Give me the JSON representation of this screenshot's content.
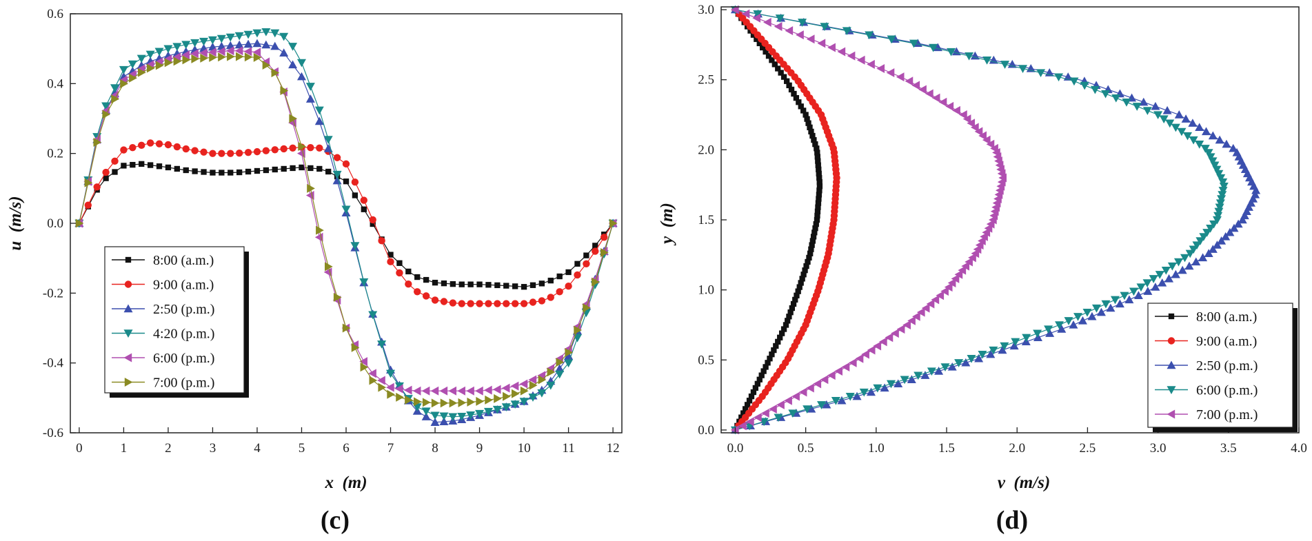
{
  "chart_data": [
    {
      "type": "line",
      "panel_label": "(c)",
      "xlabel": "x  (m)",
      "ylabel": "u  (m/s)",
      "xlim": [
        -0.2,
        12.2
      ],
      "ylim": [
        -0.6,
        0.6
      ],
      "xticks": [
        0,
        1,
        2,
        3,
        4,
        5,
        6,
        7,
        8,
        9,
        10,
        11,
        12
      ],
      "xtick_labels": [
        "0",
        "1",
        "2",
        "3",
        "4",
        "5",
        "6",
        "7",
        "8",
        "9",
        "10",
        "11",
        "12"
      ],
      "yticks": [
        -0.6,
        -0.4,
        -0.2,
        0.0,
        0.2,
        0.4,
        0.6
      ],
      "ytick_labels": [
        "-0.6",
        "-0.4",
        "-0.2",
        "0.0",
        "0.2",
        "0.4",
        "0.6"
      ],
      "legend_position": "lower-left",
      "x_step": 0.2,
      "series": [
        {
          "name": "8:00 (a.m.)",
          "color": "#111111",
          "marker": "square",
          "x": [
            0,
            0.5,
            1,
            1.4,
            2,
            2.5,
            3,
            3.5,
            4,
            4.5,
            5,
            5.5,
            6,
            6.5,
            7,
            7.5,
            8,
            8.5,
            9,
            9.5,
            10,
            10.5,
            11,
            11.5,
            12
          ],
          "y": [
            0,
            0.12,
            0.165,
            0.17,
            0.16,
            0.15,
            0.145,
            0.145,
            0.15,
            0.155,
            0.16,
            0.155,
            0.12,
            0.02,
            -0.09,
            -0.15,
            -0.17,
            -0.175,
            -0.175,
            -0.178,
            -0.182,
            -0.17,
            -0.14,
            -0.08,
            0
          ]
        },
        {
          "name": "9:00 (a.m.)",
          "color": "#e8231f",
          "marker": "circle",
          "x": [
            0,
            0.5,
            1,
            1.6,
            2,
            2.5,
            3,
            3.5,
            4,
            4.5,
            5,
            5.5,
            6,
            6.5,
            7,
            7.5,
            8,
            8.5,
            9,
            9.5,
            10,
            10.5,
            11,
            11.5,
            12
          ],
          "y": [
            0,
            0.13,
            0.21,
            0.23,
            0.225,
            0.21,
            0.2,
            0.2,
            0.205,
            0.212,
            0.218,
            0.215,
            0.17,
            0.04,
            -0.11,
            -0.19,
            -0.22,
            -0.23,
            -0.23,
            -0.23,
            -0.23,
            -0.22,
            -0.18,
            -0.1,
            0
          ]
        },
        {
          "name": "2:50 (p.m.)",
          "color": "#3b4fae",
          "marker": "triangle-up",
          "x": [
            0,
            0.5,
            1,
            1.5,
            2,
            2.5,
            3,
            3.5,
            4,
            4.5,
            5,
            5.5,
            6,
            6.5,
            7,
            7.5,
            8,
            8.5,
            9,
            9.5,
            10,
            10.5,
            11,
            11.5,
            12
          ],
          "y": [
            0,
            0.3,
            0.42,
            0.46,
            0.48,
            0.495,
            0.505,
            0.51,
            0.515,
            0.505,
            0.42,
            0.26,
            0.03,
            -0.22,
            -0.42,
            -0.53,
            -0.57,
            -0.565,
            -0.55,
            -0.53,
            -0.51,
            -0.47,
            -0.38,
            -0.2,
            0
          ]
        },
        {
          "name": "4:20 (p.m.)",
          "color": "#1a8a8a",
          "marker": "triangle-down",
          "x": [
            0,
            0.5,
            1,
            1.5,
            2,
            2.5,
            3,
            3.5,
            4,
            4.3,
            4.7,
            5,
            5.5,
            6,
            6.5,
            7,
            7.5,
            8,
            8.5,
            9,
            9.5,
            10,
            10.5,
            11,
            11.5,
            12
          ],
          "y": [
            0,
            0.31,
            0.44,
            0.48,
            0.5,
            0.515,
            0.525,
            0.535,
            0.545,
            0.55,
            0.53,
            0.46,
            0.29,
            0.04,
            -0.22,
            -0.43,
            -0.52,
            -0.55,
            -0.555,
            -0.545,
            -0.53,
            -0.51,
            -0.48,
            -0.4,
            -0.22,
            0
          ]
        },
        {
          "name": "6:00 (p.m.)",
          "color": "#b04fb0",
          "marker": "triangle-left",
          "x": [
            0,
            0.5,
            1,
            1.5,
            2,
            2.5,
            3,
            3.5,
            4,
            4.5,
            5,
            5.5,
            6,
            6.5,
            7,
            7.5,
            8,
            8.5,
            9,
            9.5,
            10,
            10.5,
            11,
            11.5,
            12
          ],
          "y": [
            0,
            0.3,
            0.41,
            0.45,
            0.47,
            0.485,
            0.49,
            0.495,
            0.49,
            0.42,
            0.2,
            -0.1,
            -0.3,
            -0.42,
            -0.47,
            -0.48,
            -0.48,
            -0.48,
            -0.48,
            -0.475,
            -0.46,
            -0.43,
            -0.36,
            -0.2,
            0
          ]
        },
        {
          "name": "7:00 (p.m.)",
          "color": "#8a8a22",
          "marker": "triangle-right",
          "x": [
            0,
            0.5,
            1,
            1.5,
            2,
            2.5,
            3,
            3.5,
            4,
            4.5,
            5,
            5.5,
            6,
            6.5,
            7,
            7.5,
            8,
            8.5,
            9,
            9.5,
            10,
            10.5,
            11,
            11.5,
            12
          ],
          "y": [
            0,
            0.29,
            0.4,
            0.44,
            0.46,
            0.47,
            0.475,
            0.478,
            0.475,
            0.42,
            0.22,
            -0.08,
            -0.3,
            -0.44,
            -0.49,
            -0.51,
            -0.515,
            -0.515,
            -0.51,
            -0.5,
            -0.48,
            -0.44,
            -0.37,
            -0.21,
            0
          ]
        }
      ]
    },
    {
      "type": "line",
      "panel_label": "(d)",
      "xlabel": "v  (m/s)",
      "ylabel": "y  (m)",
      "xlim": [
        -0.1,
        4.0
      ],
      "ylim": [
        -0.02,
        3.02
      ],
      "xticks": [
        0,
        0.5,
        1,
        1.5,
        2,
        2.5,
        3,
        3.5,
        4
      ],
      "xtick_labels": [
        "0.0",
        "0.5",
        "1.0",
        "1.5",
        "2.0",
        "2.5",
        "3.0",
        "3.5",
        "4.0"
      ],
      "yticks": [
        0,
        0.5,
        1,
        1.5,
        2,
        2.5,
        3
      ],
      "ytick_labels": [
        "0.0",
        "0.5",
        "1.0",
        "1.5",
        "2.0",
        "2.5",
        "3.0"
      ],
      "legend_position": "lower-right",
      "y_step": 0.03,
      "series": [
        {
          "name": "8:00 (a.m.)",
          "color": "#111111",
          "marker": "square",
          "y": [
            0,
            0.25,
            0.5,
            0.75,
            1.0,
            1.25,
            1.5,
            1.75,
            2.0,
            2.25,
            2.5,
            2.75,
            3.0
          ],
          "x": [
            0,
            0.12,
            0.24,
            0.36,
            0.45,
            0.53,
            0.58,
            0.6,
            0.58,
            0.5,
            0.36,
            0.18,
            0
          ]
        },
        {
          "name": "9:00 (a.m.)",
          "color": "#e8231f",
          "marker": "circle",
          "y": [
            0,
            0.25,
            0.5,
            0.75,
            1.0,
            1.25,
            1.5,
            1.8,
            2.0,
            2.25,
            2.5,
            2.75,
            3.0
          ],
          "x": [
            0,
            0.2,
            0.37,
            0.5,
            0.59,
            0.66,
            0.7,
            0.72,
            0.7,
            0.61,
            0.44,
            0.22,
            0
          ]
        },
        {
          "name": "2:50 (p.m.)",
          "color": "#3b4fae",
          "marker": "triangle-up",
          "y": [
            0,
            0.25,
            0.5,
            0.75,
            1.0,
            1.25,
            1.5,
            1.7,
            2.0,
            2.25,
            2.5,
            2.75,
            3.0
          ],
          "x": [
            0,
            0.9,
            1.7,
            2.4,
            2.95,
            3.35,
            3.6,
            3.7,
            3.55,
            3.15,
            2.45,
            1.35,
            0
          ]
        },
        {
          "name": "6:00 (p.m.)",
          "color": "#1a8a8a",
          "marker": "triangle-down",
          "y": [
            0,
            0.25,
            0.5,
            0.75,
            1.0,
            1.25,
            1.5,
            1.75,
            2.0,
            2.25,
            2.5,
            2.75,
            3.0
          ],
          "x": [
            0,
            0.85,
            1.65,
            2.3,
            2.85,
            3.22,
            3.42,
            3.47,
            3.35,
            3.0,
            2.38,
            1.32,
            0
          ]
        },
        {
          "name": "7:00 (p.m.)",
          "color": "#b04fb0",
          "marker": "triangle-left",
          "y": [
            0,
            0.25,
            0.5,
            0.75,
            1.0,
            1.25,
            1.5,
            1.8,
            2.0,
            2.25,
            2.5,
            2.75,
            3.0
          ],
          "x": [
            0,
            0.45,
            0.87,
            1.22,
            1.5,
            1.7,
            1.83,
            1.9,
            1.85,
            1.62,
            1.22,
            0.64,
            0
          ]
        }
      ]
    }
  ]
}
